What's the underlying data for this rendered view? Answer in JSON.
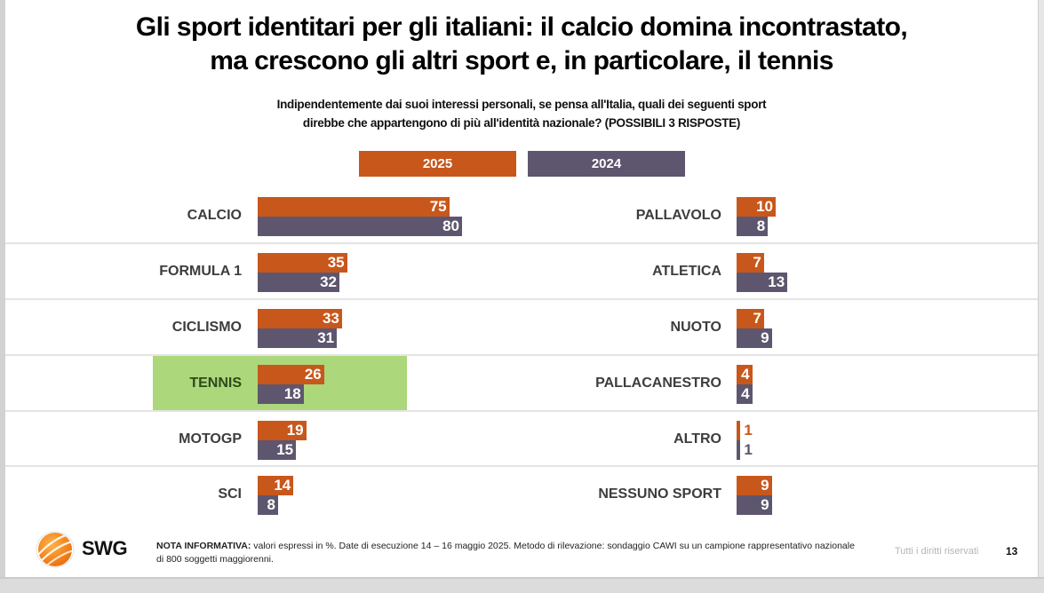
{
  "title_line1": "Gli sport identitari per gli italiani: il calcio domina incontrastato,",
  "title_line2": "ma crescono gli altri sport e, in particolare, il tennis",
  "subtitle_line1": "Indipendentemente dai suoi interessi personali, se pensa all'Italia, quali dei seguenti sport",
  "subtitle_line2": "direbbe che appartengono di più all'identità nazionale? (POSSIBILI 3 RISPOSTE)",
  "colors": {
    "s2025": "#c8571b",
    "s2024": "#5e566e",
    "highlight": "#acd77a"
  },
  "chart_data": {
    "type": "bar",
    "orientation": "horizontal",
    "unit": "%",
    "title": "Gli sport identitari per gli italiani: il calcio domina incontrastato, ma crescono gli altri sport e, in particolare, il tennis",
    "subtitle": "Indipendentemente dai suoi interessi personali, se pensa all'Italia, quali dei seguenti sport direbbe che appartengono di più all'identità nazionale? (POSSIBILI 3 RISPOSTE)",
    "legend": [
      "2025",
      "2024"
    ],
    "legend_position": "top-center",
    "highlighted_category": "TENNIS",
    "panels": [
      {
        "categories": [
          "CALCIO",
          "FORMULA 1",
          "CICLISMO",
          "TENNIS",
          "MOTOGP",
          "SCI"
        ],
        "series": [
          {
            "name": "2025",
            "values": [
              75,
              35,
              33,
              26,
              19,
              14
            ]
          },
          {
            "name": "2024",
            "values": [
              80,
              32,
              31,
              18,
              15,
              8
            ]
          }
        ]
      },
      {
        "categories": [
          "PALLAVOLO",
          "ATLETICA",
          "NUOTO",
          "PALLACANESTRO",
          "ALTRO",
          "NESSUNO SPORT"
        ],
        "series": [
          {
            "name": "2025",
            "values": [
              10,
              7,
              7,
              4,
              1,
              9
            ]
          },
          {
            "name": "2024",
            "values": [
              8,
              13,
              9,
              4,
              1,
              9
            ]
          }
        ]
      }
    ]
  },
  "footer": {
    "brand": "SWG",
    "note_label": "NOTA INFORMATIVA:",
    "note_text": " valori espressi in %. Date di esecuzione 14 – 16 maggio 2025. Metodo di rilevazione: sondaggio CAWI su un campione rappresentativo nazionale di 800 soggetti maggiorenni.",
    "rights": "Tutti i diritti riservati",
    "page_number": "13"
  }
}
